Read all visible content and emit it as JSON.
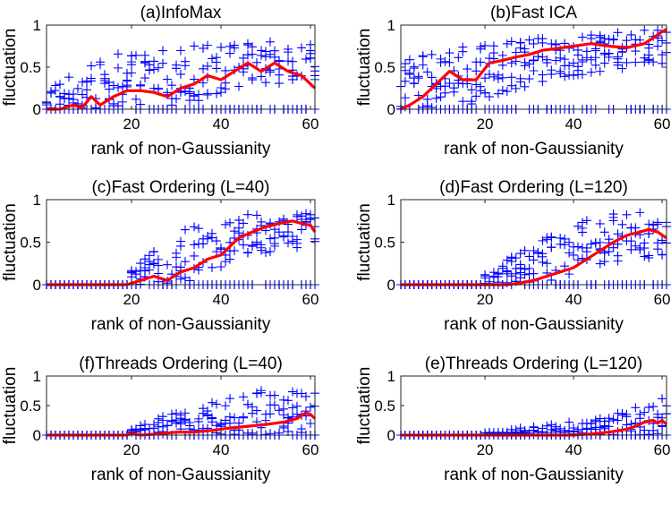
{
  "chart_data": [
    {
      "type": "scatter",
      "title": "(a)InfoMax",
      "xlabel": "rank of non-Gaussianity",
      "ylabel": "fluctuation",
      "xlim": [
        1,
        61
      ],
      "ylim": [
        0,
        1
      ],
      "xticks": [
        20,
        40,
        60
      ],
      "yticks": [
        0,
        0.5,
        1
      ],
      "tick_labels": {
        "x": [
          "20",
          "40",
          "60"
        ],
        "y": [
          "0",
          "0.5",
          "1"
        ]
      },
      "active_from": 1,
      "spread": {
        "lo": [
          0.0,
          0.0,
          0.05,
          0.25,
          0.35
        ],
        "hi": [
          0.25,
          0.65,
          0.75,
          0.8,
          0.8
        ]
      },
      "mean_line": {
        "name": "mean",
        "color": "#ff0000",
        "x": [
          1,
          4,
          7,
          9,
          11,
          13,
          16,
          19,
          22,
          25,
          28,
          31,
          34,
          37,
          40,
          43,
          46,
          49,
          52,
          55,
          58,
          61
        ],
        "y": [
          0,
          0,
          0.05,
          0.02,
          0.15,
          0.05,
          0.15,
          0.22,
          0.22,
          0.2,
          0.15,
          0.25,
          0.3,
          0.4,
          0.35,
          0.45,
          0.55,
          0.45,
          0.55,
          0.45,
          0.4,
          0.25
        ]
      },
      "point_color": "#0000ff"
    },
    {
      "type": "scatter",
      "title": "(b)Fast ICA",
      "xlabel": "rank of non-Gaussianity",
      "ylabel": "fluctuation",
      "xlim": [
        1,
        61
      ],
      "ylim": [
        0,
        1
      ],
      "xticks": [
        20,
        40,
        60
      ],
      "yticks": [
        0,
        0.5,
        1
      ],
      "tick_labels": {
        "x": [
          "20",
          "40",
          "60"
        ],
        "y": [
          "0",
          "0.5",
          "1"
        ]
      },
      "active_from": 1,
      "spread": {
        "lo": [
          0.0,
          0.0,
          0.3,
          0.45,
          0.55
        ],
        "hi": [
          0.6,
          0.75,
          0.85,
          0.9,
          0.97
        ]
      },
      "mean_line": {
        "name": "mean",
        "color": "#ff0000",
        "x": [
          1,
          3,
          6,
          9,
          12,
          15,
          18,
          21,
          24,
          27,
          30,
          33,
          36,
          40,
          44,
          48,
          52,
          56,
          58,
          60,
          61
        ],
        "y": [
          0,
          0.05,
          0.15,
          0.3,
          0.45,
          0.35,
          0.35,
          0.55,
          0.58,
          0.62,
          0.65,
          0.7,
          0.72,
          0.75,
          0.78,
          0.75,
          0.73,
          0.78,
          0.85,
          0.92,
          0.95
        ]
      },
      "point_color": "#0000ff"
    },
    {
      "type": "scatter",
      "title": "(c)Fast Ordering (L=40)",
      "xlabel": "rank of non-Gaussianity",
      "ylabel": "fluctuation",
      "xlim": [
        1,
        61
      ],
      "ylim": [
        0,
        1
      ],
      "xticks": [
        20,
        40,
        60
      ],
      "yticks": [
        0,
        0.5,
        1
      ],
      "tick_labels": {
        "x": [
          "20",
          "40",
          "60"
        ],
        "y": [
          "0",
          "0.5",
          "1"
        ]
      },
      "active_from": 20,
      "spread": {
        "lo": [
          0.0,
          0.0,
          0.0,
          0.35,
          0.45
        ],
        "hi": [
          0.0,
          0.0,
          0.65,
          0.85,
          0.85
        ]
      },
      "mean_line": {
        "name": "mean",
        "color": "#ff0000",
        "x": [
          1,
          19,
          22,
          25,
          28,
          31,
          34,
          37,
          40,
          42,
          44,
          47,
          50,
          53,
          56,
          58,
          60,
          61
        ],
        "y": [
          0,
          0,
          0.05,
          0.1,
          0.05,
          0.15,
          0.2,
          0.3,
          0.35,
          0.45,
          0.55,
          0.62,
          0.68,
          0.72,
          0.75,
          0.72,
          0.7,
          0.62
        ]
      },
      "point_color": "#0000ff"
    },
    {
      "type": "scatter",
      "title": "(d)Fast Ordering (L=120)",
      "xlabel": "rank of non-Gaussianity",
      "ylabel": "fluctuation",
      "xlim": [
        1,
        61
      ],
      "ylim": [
        0,
        1
      ],
      "xticks": [
        20,
        40,
        60
      ],
      "yticks": [
        0,
        0.5,
        1
      ],
      "tick_labels": {
        "x": [
          "20",
          "40",
          "60"
        ],
        "y": [
          "0",
          "0.5",
          "1"
        ]
      },
      "active_from": 20,
      "spread": {
        "lo": [
          0.0,
          0.0,
          0.0,
          0.2,
          0.35
        ],
        "hi": [
          0.0,
          0.0,
          0.5,
          0.85,
          0.85
        ]
      },
      "mean_line": {
        "name": "mean",
        "color": "#ff0000",
        "x": [
          1,
          25,
          28,
          31,
          34,
          37,
          40,
          43,
          46,
          49,
          52,
          55,
          57,
          59,
          61
        ],
        "y": [
          0,
          0,
          0.02,
          0.05,
          0.1,
          0.15,
          0.2,
          0.3,
          0.4,
          0.5,
          0.58,
          0.62,
          0.65,
          0.62,
          0.55
        ]
      },
      "point_color": "#0000ff"
    },
    {
      "type": "scatter",
      "title": "(f)Threads Ordering (L=40)",
      "xlabel": "rank of non-Gaussianity",
      "ylabel": "fluctuation",
      "xlim": [
        1,
        61
      ],
      "ylim": [
        0,
        1
      ],
      "xticks": [
        20,
        40,
        60
      ],
      "yticks": [
        0,
        0.5,
        1
      ],
      "tick_labels": {
        "x": [
          "20",
          "40",
          "60"
        ],
        "y": [
          "0",
          "0.5",
          "1"
        ]
      },
      "active_from": 20,
      "spread": {
        "lo": [
          0.0,
          0.0,
          0.0,
          0.0,
          0.0
        ],
        "hi": [
          0.0,
          0.0,
          0.45,
          0.75,
          0.8
        ]
      },
      "mean_line": {
        "name": "mean",
        "color": "#ff0000",
        "x": [
          1,
          19,
          20,
          22,
          26,
          30,
          34,
          38,
          42,
          46,
          50,
          54,
          57,
          59,
          60,
          61
        ],
        "y": [
          0,
          0,
          0.03,
          0.0,
          0.02,
          0.05,
          0.05,
          0.08,
          0.12,
          0.15,
          0.18,
          0.22,
          0.28,
          0.38,
          0.35,
          0.28
        ]
      },
      "point_color": "#0000ff"
    },
    {
      "type": "scatter",
      "title": "(e)Threads Ordering (L=120)",
      "xlabel": "rank of non-Gaussianity",
      "ylabel": "fluctuation",
      "xlim": [
        1,
        61
      ],
      "ylim": [
        0,
        1
      ],
      "xticks": [
        20,
        40,
        60
      ],
      "yticks": [
        0,
        0.5,
        1
      ],
      "tick_labels": {
        "x": [
          "20",
          "40",
          "60"
        ],
        "y": [
          "0",
          "0.5",
          "1"
        ]
      },
      "active_from": 20,
      "spread": {
        "lo": [
          0.0,
          0.0,
          0.0,
          0.0,
          0.0
        ],
        "hi": [
          0.0,
          0.0,
          0.15,
          0.3,
          0.65
        ]
      },
      "mean_line": {
        "name": "mean",
        "color": "#ff0000",
        "x": [
          1,
          40,
          44,
          48,
          52,
          54,
          56,
          58,
          59,
          60,
          61
        ],
        "y": [
          0,
          0,
          0.02,
          0.05,
          0.1,
          0.15,
          0.22,
          0.25,
          0.2,
          0.25,
          0.18
        ]
      },
      "point_color": "#0000ff"
    }
  ]
}
